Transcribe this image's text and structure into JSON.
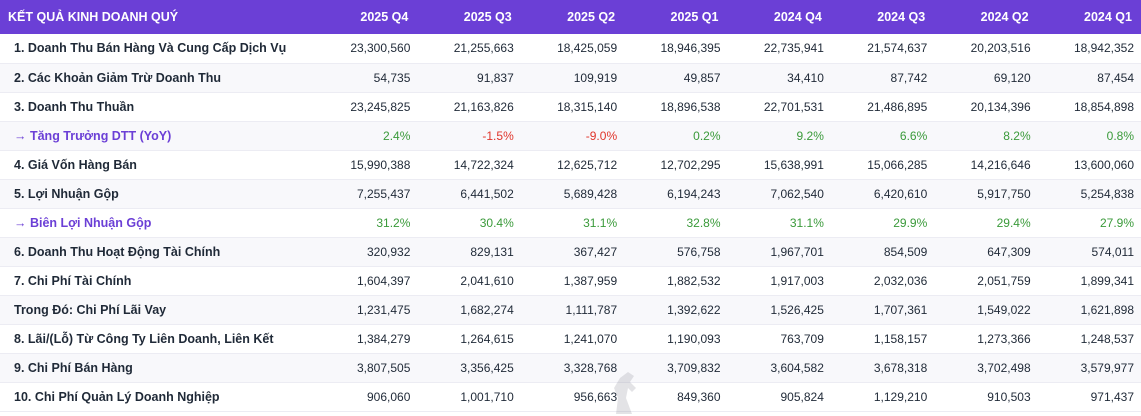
{
  "table": {
    "title": "KẾT QUẢ KINH DOANH QUÝ",
    "periods": [
      "2025 Q4",
      "2025 Q3",
      "2025 Q2",
      "2025 Q1",
      "2024 Q4",
      "2024 Q3",
      "2024 Q2",
      "2024 Q1"
    ],
    "rows": [
      {
        "label": "1. Doanh Thu Bán Hàng Và Cung Cấp Dịch Vụ",
        "kind": "value",
        "values": [
          "23,300,560",
          "21,255,663",
          "18,425,059",
          "18,946,395",
          "22,735,941",
          "21,574,637",
          "20,203,516",
          "18,942,352"
        ]
      },
      {
        "label": "2. Các Khoản Giảm Trừ Doanh Thu",
        "kind": "value",
        "values": [
          "54,735",
          "91,837",
          "109,919",
          "49,857",
          "34,410",
          "87,742",
          "69,120",
          "87,454"
        ]
      },
      {
        "label": "3. Doanh Thu Thuần",
        "kind": "value",
        "values": [
          "23,245,825",
          "21,163,826",
          "18,315,140",
          "18,896,538",
          "22,701,531",
          "21,486,895",
          "20,134,396",
          "18,854,898"
        ]
      },
      {
        "label": "→ Tăng Trưởng DTT (YoY)",
        "kind": "ratio",
        "values": [
          "2.4%",
          "-1.5%",
          "-9.0%",
          "0.2%",
          "9.2%",
          "6.6%",
          "8.2%",
          "0.8%"
        ]
      },
      {
        "label": "4. Giá Vốn Hàng Bán",
        "kind": "value",
        "values": [
          "15,990,388",
          "14,722,324",
          "12,625,712",
          "12,702,295",
          "15,638,991",
          "15,066,285",
          "14,216,646",
          "13,600,060"
        ]
      },
      {
        "label": "5. Lợi Nhuận Gộp",
        "kind": "value",
        "values": [
          "7,255,437",
          "6,441,502",
          "5,689,428",
          "6,194,243",
          "7,062,540",
          "6,420,610",
          "5,917,750",
          "5,254,838"
        ]
      },
      {
        "label": "→ Biên Lợi Nhuận Gộp",
        "kind": "ratio",
        "values": [
          "31.2%",
          "30.4%",
          "31.1%",
          "32.8%",
          "31.1%",
          "29.9%",
          "29.4%",
          "27.9%"
        ]
      },
      {
        "label": "6. Doanh Thu Hoạt Động Tài Chính",
        "kind": "value",
        "values": [
          "320,932",
          "829,131",
          "367,427",
          "576,758",
          "1,967,701",
          "854,509",
          "647,309",
          "574,011"
        ]
      },
      {
        "label": "7. Chi Phí Tài Chính",
        "kind": "value",
        "values": [
          "1,604,397",
          "2,041,610",
          "1,387,959",
          "1,882,532",
          "1,917,003",
          "2,032,036",
          "2,051,759",
          "1,899,341"
        ]
      },
      {
        "label": "Trong Đó: Chi Phí Lãi Vay",
        "kind": "value",
        "values": [
          "1,231,475",
          "1,682,274",
          "1,111,787",
          "1,392,622",
          "1,526,425",
          "1,707,361",
          "1,549,022",
          "1,621,898"
        ]
      },
      {
        "label": "8. Lãi/(Lỗ) Từ Công Ty Liên Doanh, Liên Kết",
        "kind": "value",
        "values": [
          "1,384,279",
          "1,264,615",
          "1,241,070",
          "1,190,093",
          "763,709",
          "1,158,157",
          "1,273,366",
          "1,248,537"
        ]
      },
      {
        "label": "9. Chi Phí Bán Hàng",
        "kind": "value",
        "values": [
          "3,807,505",
          "3,356,425",
          "3,328,768",
          "3,709,832",
          "3,604,582",
          "3,678,318",
          "3,702,498",
          "3,579,977"
        ]
      },
      {
        "label": "10. Chi Phí Quản Lý Doanh Nghiệp",
        "kind": "value",
        "values": [
          "906,060",
          "1,001,710",
          "956,663",
          "849,360",
          "905,824",
          "1,129,210",
          "910,503",
          "971,437"
        ]
      }
    ]
  },
  "colors": {
    "header_bg": "#6b3fd6",
    "ratio_label": "#6b3fd6",
    "positive": "#3a9a3a",
    "negative": "#e0352b"
  },
  "watermark_icon": "horse-logo-icon"
}
